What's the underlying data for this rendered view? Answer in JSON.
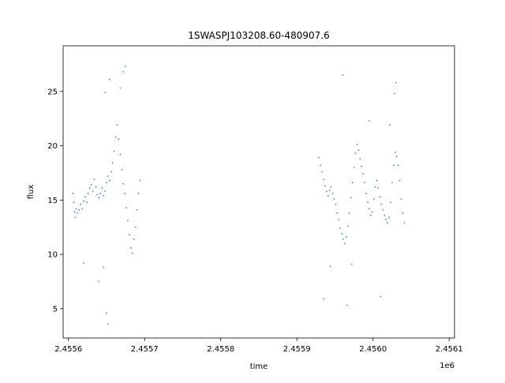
{
  "chart_data": {
    "type": "scatter",
    "title": "1SWASPJ103208.60-480907.6",
    "xlabel": "time",
    "ylabel": "flux",
    "x_offset_label": "1e6",
    "xlim": [
      2455593,
      2456107
    ],
    "ylim": [
      2.3,
      29.2
    ],
    "x_ticks": [
      2455600,
      2455700,
      2455800,
      2455900,
      2456000,
      2456100
    ],
    "x_tick_labels": [
      "2.4556",
      "2.4557",
      "2.4558",
      "2.4559",
      "2.4560",
      "2.4561"
    ],
    "y_ticks": [
      5,
      10,
      15,
      20,
      25
    ],
    "y_tick_labels": [
      "5",
      "10",
      "15",
      "20",
      "25"
    ],
    "grid": false,
    "series": [
      {
        "name": "",
        "color": "#1f77b4",
        "marker": "point",
        "points": [
          [
            2455606,
            15.6
          ],
          [
            2455607,
            14.8
          ],
          [
            2455608,
            13.9
          ],
          [
            2455609,
            13.4
          ],
          [
            2455610,
            14.2
          ],
          [
            2455612,
            13.8
          ],
          [
            2455614,
            14.1
          ],
          [
            2455616,
            14.6
          ],
          [
            2455618,
            14.2
          ],
          [
            2455620,
            14.9
          ],
          [
            2455622,
            15.3
          ],
          [
            2455624,
            14.8
          ],
          [
            2455626,
            15.6
          ],
          [
            2455628,
            16.1
          ],
          [
            2455630,
            16.4
          ],
          [
            2455632,
            15.8
          ],
          [
            2455634,
            16.9
          ],
          [
            2455636,
            16.2
          ],
          [
            2455638,
            15.5
          ],
          [
            2455640,
            15.2
          ],
          [
            2455642,
            15.6
          ],
          [
            2455644,
            16.1
          ],
          [
            2455646,
            15.4
          ],
          [
            2455648,
            15.8
          ],
          [
            2455650,
            16.6
          ],
          [
            2455652,
            17.2
          ],
          [
            2455654,
            16.8
          ],
          [
            2455656,
            17.6
          ],
          [
            2455658,
            18.4
          ],
          [
            2455660,
            19.5
          ],
          [
            2455662,
            20.8
          ],
          [
            2455664,
            21.9
          ],
          [
            2455666,
            20.6
          ],
          [
            2455668,
            19.2
          ],
          [
            2455670,
            17.8
          ],
          [
            2455672,
            16.5
          ],
          [
            2455674,
            15.6
          ],
          [
            2455676,
            14.3
          ],
          [
            2455678,
            13.1
          ],
          [
            2455680,
            11.8
          ],
          [
            2455682,
            10.6
          ],
          [
            2455684,
            10.1
          ],
          [
            2455686,
            11.4
          ],
          [
            2455688,
            12.5
          ],
          [
            2455690,
            14.1
          ],
          [
            2455692,
            15.6
          ],
          [
            2455694,
            16.8
          ],
          [
            2455648,
            24.9
          ],
          [
            2455650,
            4.6
          ],
          [
            2455652,
            3.6
          ],
          [
            2455646,
            8.8
          ],
          [
            2455672,
            26.8
          ],
          [
            2455675,
            27.3
          ],
          [
            2455654,
            26.1
          ],
          [
            2455668,
            25.3
          ],
          [
            2455620,
            9.2
          ],
          [
            2455640,
            7.5
          ],
          [
            2455929,
            18.9
          ],
          [
            2455931,
            18.2
          ],
          [
            2455933,
            17.6
          ],
          [
            2455935,
            16.9
          ],
          [
            2455937,
            16.3
          ],
          [
            2455939,
            15.8
          ],
          [
            2455941,
            15.4
          ],
          [
            2455943,
            15.9
          ],
          [
            2455945,
            16.2
          ],
          [
            2455947,
            15.6
          ],
          [
            2455949,
            15.1
          ],
          [
            2455951,
            14.6
          ],
          [
            2455953,
            13.8
          ],
          [
            2455955,
            13.2
          ],
          [
            2455957,
            12.4
          ],
          [
            2455959,
            11.9
          ],
          [
            2455961,
            11.4
          ],
          [
            2455963,
            11.0
          ],
          [
            2455965,
            11.6
          ],
          [
            2455967,
            12.6
          ],
          [
            2455969,
            13.8
          ],
          [
            2455971,
            15.2
          ],
          [
            2455973,
            16.6
          ],
          [
            2455975,
            18.0
          ],
          [
            2455977,
            19.3
          ],
          [
            2455979,
            20.1
          ],
          [
            2455981,
            19.6
          ],
          [
            2455983,
            18.8
          ],
          [
            2455985,
            18.1
          ],
          [
            2455987,
            17.4
          ],
          [
            2455989,
            16.6
          ],
          [
            2455991,
            15.6
          ],
          [
            2455993,
            14.8
          ],
          [
            2455995,
            14.2
          ],
          [
            2455997,
            13.6
          ],
          [
            2455999,
            13.9
          ],
          [
            2456001,
            15.1
          ],
          [
            2456003,
            16.2
          ],
          [
            2456005,
            16.8
          ],
          [
            2456007,
            16.1
          ],
          [
            2456009,
            15.3
          ],
          [
            2456011,
            14.6
          ],
          [
            2456013,
            14.1
          ],
          [
            2456015,
            13.6
          ],
          [
            2456017,
            13.2
          ],
          [
            2456019,
            12.9
          ],
          [
            2456021,
            13.4
          ],
          [
            2456023,
            14.8
          ],
          [
            2456025,
            16.6
          ],
          [
            2456027,
            18.2
          ],
          [
            2456029,
            19.4
          ],
          [
            2456031,
            19.0
          ],
          [
            2456033,
            18.2
          ],
          [
            2456035,
            16.8
          ],
          [
            2456037,
            15.1
          ],
          [
            2456039,
            13.8
          ],
          [
            2456041,
            12.9
          ],
          [
            2455960,
            26.5
          ],
          [
            2455995,
            22.3
          ],
          [
            2456030,
            25.8
          ],
          [
            2456022,
            21.9
          ],
          [
            2455944,
            8.9
          ],
          [
            2455972,
            9.1
          ],
          [
            2455966,
            5.3
          ],
          [
            2456010,
            6.1
          ],
          [
            2455935,
            5.9
          ],
          [
            2456028,
            24.8
          ]
        ]
      }
    ]
  }
}
